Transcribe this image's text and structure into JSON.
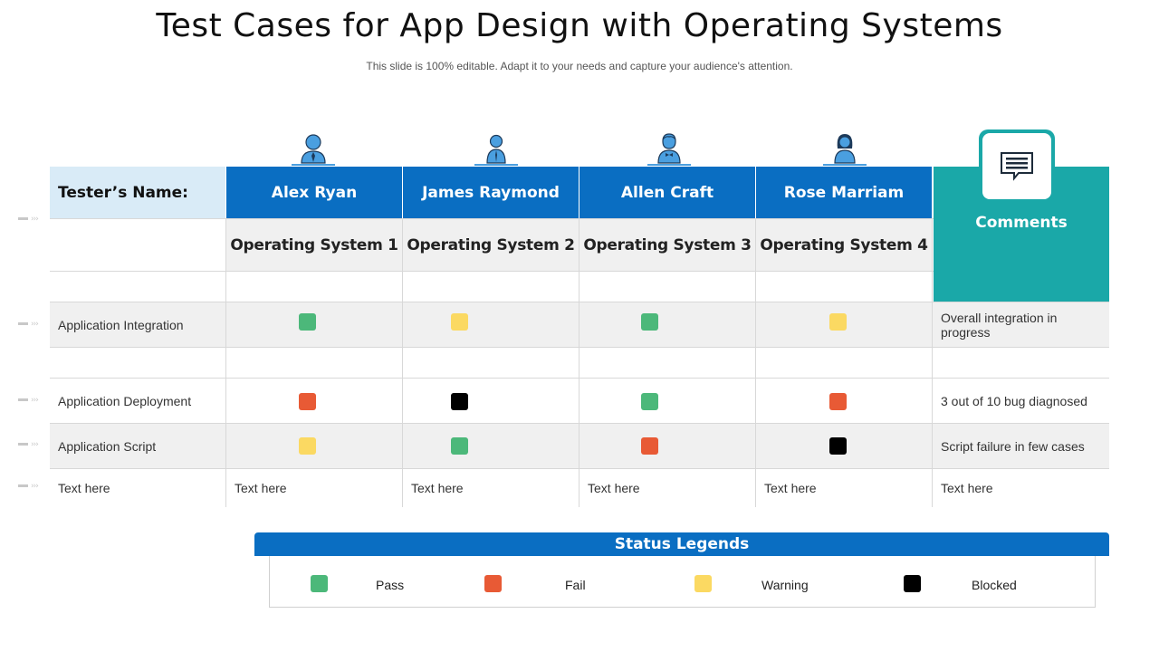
{
  "title": "Test Cases for App Design with Operating Systems",
  "subtitle": "This slide is 100% editable. Adapt it to your needs and capture your audience's attention.",
  "colors": {
    "pass": "#4cb87a",
    "fail": "#e85a35",
    "warning": "#fbd962",
    "blocked": "#000000",
    "header_blue": "#0a6ec2",
    "comments_teal": "#1aa8a8",
    "tester_label_bg": "#d9ebf7"
  },
  "table": {
    "tester_label": "Tester’s Name:",
    "testers": [
      {
        "name": "Alex Ryan",
        "os": "Operating System 1",
        "icon": "male-user-icon"
      },
      {
        "name": "James Raymond",
        "os": "Operating System 2",
        "icon": "male-user-tie-icon"
      },
      {
        "name": "Allen Craft",
        "os": "Operating System 3",
        "icon": "male-user-bowtie-icon"
      },
      {
        "name": "Rose Marriam",
        "os": "Operating System 4",
        "icon": "female-user-icon"
      }
    ],
    "comments_label": "Comments",
    "comments_icon": "chat-bubble-icon",
    "rows": [
      {
        "label": "Application Integration",
        "statuses": [
          "pass",
          "warning",
          "pass",
          "warning"
        ],
        "comment": "Overall integration in progress"
      },
      {
        "label": "Application Deployment",
        "statuses": [
          "fail",
          "blocked",
          "pass",
          "fail"
        ],
        "comment": "3 out of 10 bug diagnosed"
      },
      {
        "label": "Application Script",
        "statuses": [
          "warning",
          "pass",
          "fail",
          "blocked"
        ],
        "comment": "Script failure in few cases"
      }
    ],
    "text_row": {
      "label": "Text here",
      "cells": [
        "Text here",
        "Text here",
        "Text here",
        "Text here"
      ],
      "comment": "Text here"
    }
  },
  "legend": {
    "title": "Status Legends",
    "items": [
      {
        "status": "pass",
        "label": "Pass"
      },
      {
        "status": "fail",
        "label": "Fail"
      },
      {
        "status": "warning",
        "label": "Warning"
      },
      {
        "status": "blocked",
        "label": "Blocked"
      }
    ]
  }
}
